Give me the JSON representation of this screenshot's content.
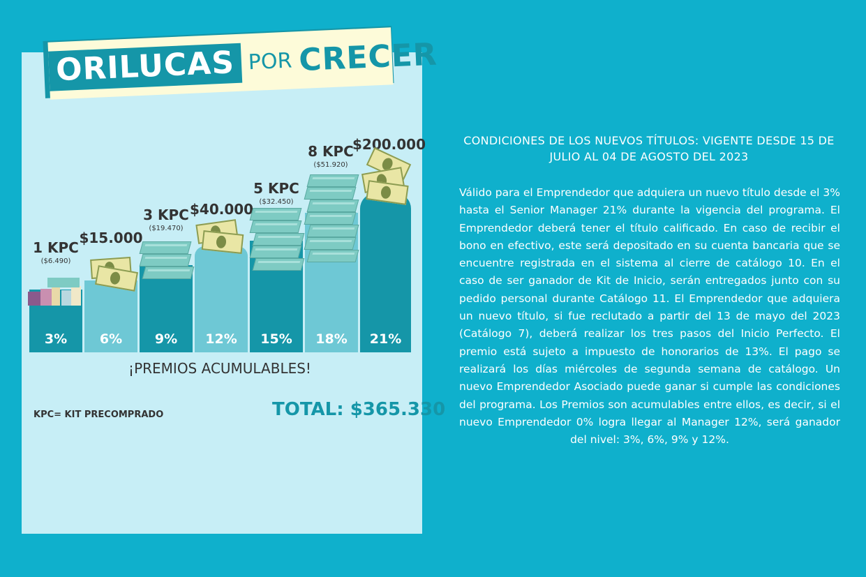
{
  "banner": {
    "word1": "ORILUCAS",
    "word2": "POR",
    "word3": "CRECER"
  },
  "levels": [
    {
      "pct": "3%",
      "label": "1 KPC",
      "sub": "($6.490)"
    },
    {
      "pct": "6%",
      "label": "$15.000",
      "sub": ""
    },
    {
      "pct": "9%",
      "label": "3 KPC",
      "sub": "($19.470)"
    },
    {
      "pct": "12%",
      "label": "$40.000",
      "sub": ""
    },
    {
      "pct": "15%",
      "label": "5 KPC",
      "sub": "($32.450)"
    },
    {
      "pct": "18%",
      "label": "8 KPC",
      "sub": "($51.920)"
    },
    {
      "pct": "21%",
      "label": "$200.000",
      "sub": ""
    }
  ],
  "premios": "¡PREMIOS ACUMULABLES!",
  "kpc_note": "KPC= KIT PRECOMPRADO",
  "total": "TOTAL: $365.330",
  "conditions": {
    "title": "CONDICIONES DE LOS NUEVOS TÍTULOS: VIGENTE DESDE 15 DE JULIO AL 04 DE AGOSTO DEL 2023",
    "body": "Válido para el Emprendedor que adquiera un nuevo título desde el 3% hasta el Senior Manager 21% durante la vigencia del programa. El Emprendedor deberá tener el título calificado.  En caso de recibir el bono en efectivo, este será depositado en su cuenta bancaria que se encuentre registrada en el sistema al cierre de catálogo 10. En el caso de ser ganador de Kit de Inicio, serán entregados junto con su pedido personal durante Catálogo 11. El Emprendedor que adquiera un nuevo título, si fue reclutado a partir del 13 de mayo del 2023 (Catálogo 7), deberá realizar los tres pasos del Inicio Perfecto. El premio está sujeto a impuesto de honorarios de 13%. El pago se realizará los días miércoles de segunda semana de catálogo. Un nuevo Emprendedor Asociado puede ganar si cumple las condiciones del programa. Los Premios son acumulables entre ellos, es decir, si el nuevo Emprendedor 0% logra llegar al Manager 12%, será ganador del nivel: 3%, 6%, 9% y 12%."
  }
}
